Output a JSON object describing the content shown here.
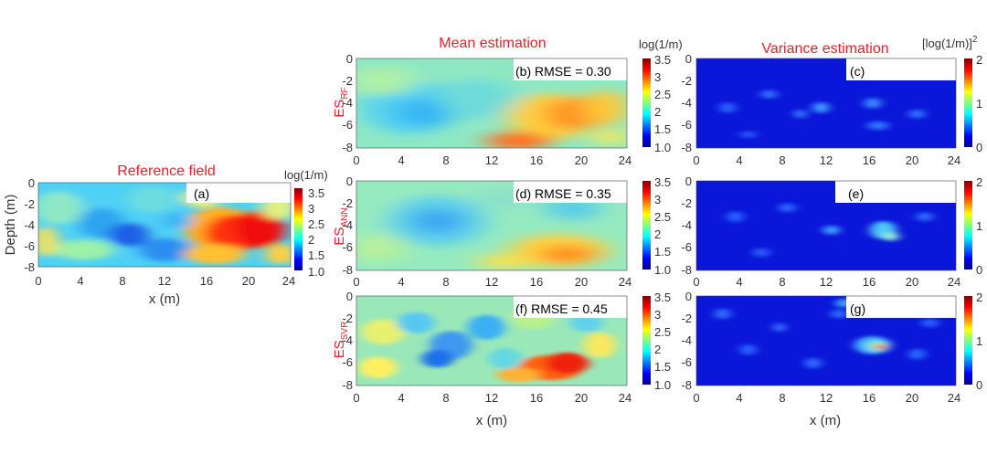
{
  "titles": {
    "reference": "Reference field",
    "mean": "Mean estimation",
    "variance": "Variance estimation"
  },
  "axes": {
    "depth_label": "Depth (m)",
    "x_label": "x (m)",
    "x_ticks": [
      "0",
      "4",
      "8",
      "12",
      "16",
      "20",
      "24"
    ],
    "y_ticks": [
      "0",
      "-2",
      "-4",
      "-6",
      "-8"
    ]
  },
  "colorbars": {
    "log_unit": "log(1/m)",
    "log_ticks": [
      "3.5",
      "3",
      "2.5",
      "2",
      "1.5",
      "1.0"
    ],
    "var_unit": "[log(1/m)]",
    "var_unit_exp": "2",
    "var_ticks": [
      "2",
      "1",
      "0"
    ]
  },
  "rows": [
    {
      "main": "ES",
      "sub": "RF",
      "mean_label": "(b) RMSE = 0.30",
      "var_label": "(c)"
    },
    {
      "main": "ES",
      "sub": "ANN",
      "mean_label": "(d) RMSE = 0.35",
      "var_label": "(e)"
    },
    {
      "main": "ES",
      "sub": "SVR",
      "mean_label": "(f) RMSE = 0.45",
      "var_label": "(g)"
    }
  ],
  "reference_label": "(a)",
  "colors": {
    "title_red": "#e8202a",
    "axis_text": "#333333",
    "jet_low": "#00008f",
    "jet_high": "#800000"
  }
}
